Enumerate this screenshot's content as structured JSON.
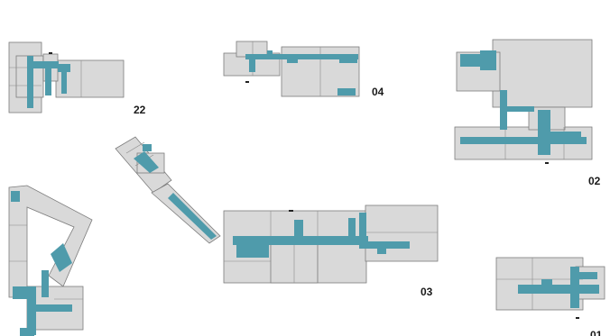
{
  "colors": {
    "background": "#ffffff",
    "room_fill": "#d9d9d9",
    "room_stroke": "#7c7c7c",
    "corridor": "#4f9bab",
    "label": "#1a1a1a"
  },
  "plans": [
    {
      "id": "22",
      "label": "22"
    },
    {
      "id": "04",
      "label": "04"
    },
    {
      "id": "02",
      "label": "02"
    },
    {
      "id": "03",
      "label": "03"
    },
    {
      "id": "01",
      "label": "01"
    },
    {
      "id": "diagonal-wing",
      "label": ""
    }
  ]
}
